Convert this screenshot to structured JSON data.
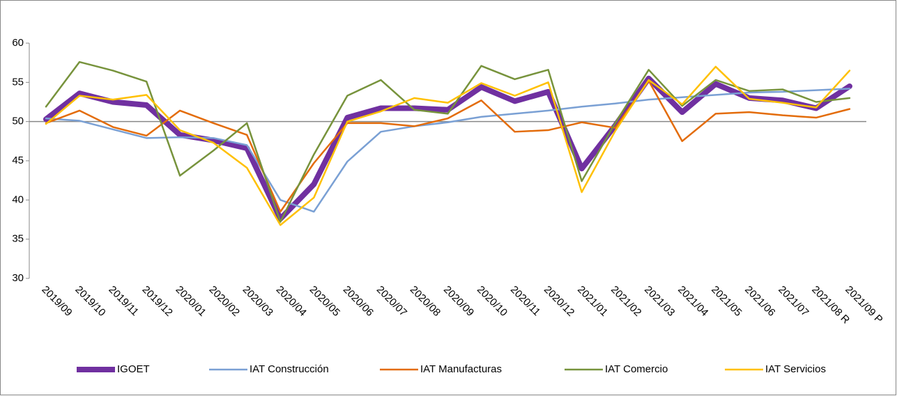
{
  "chart_data": {
    "type": "line",
    "categories": [
      "2019/09",
      "2019/10",
      "2019/11",
      "2019/12",
      "2020/01",
      "2020/02",
      "2020/03",
      "2020/04",
      "2020/05",
      "2020/06",
      "2020/07",
      "2020/08",
      "2020/09",
      "2020/10",
      "2020/11",
      "2020/12",
      "2021/01",
      "2021/02",
      "2021/03",
      "2021/04",
      "2021/05",
      "2021/06",
      "2021/07",
      "2021/08 R",
      "2021/09 P"
    ],
    "series": [
      {
        "name": "IGOET",
        "color": "#7030a0",
        "width": 8,
        "values": [
          50.3,
          53.6,
          52.5,
          52.1,
          48.3,
          47.6,
          46.6,
          37.6,
          42.0,
          50.5,
          51.7,
          51.7,
          51.5,
          54.4,
          52.6,
          53.8,
          44.0,
          49.5,
          55.5,
          51.2,
          54.8,
          53.0,
          52.7,
          51.7,
          54.5
        ]
      },
      {
        "name": "IAT Construcción",
        "color": "#7aa0d4",
        "width": 2.5,
        "values": [
          50.4,
          50.1,
          49.0,
          47.9,
          48.0,
          47.9,
          47.0,
          40.0,
          38.5,
          44.9,
          48.7,
          49.4,
          49.9,
          50.6,
          51.0,
          51.4,
          51.9,
          52.3,
          52.8,
          53.1,
          53.4,
          53.7,
          53.8,
          54.0,
          54.2
        ]
      },
      {
        "name": "IAT Manufacturas",
        "color": "#e36c0a",
        "width": 2.5,
        "values": [
          49.8,
          51.4,
          49.3,
          48.2,
          51.4,
          49.8,
          48.3,
          38.5,
          44.7,
          49.8,
          49.8,
          49.4,
          50.4,
          52.7,
          48.7,
          48.9,
          49.9,
          49.2,
          55.2,
          47.5,
          51.0,
          51.2,
          50.8,
          50.5,
          51.6
        ]
      },
      {
        "name": "IAT Comercio",
        "color": "#77933c",
        "width": 2.5,
        "values": [
          51.9,
          57.6,
          56.5,
          55.1,
          43.1,
          46.3,
          49.8,
          37.2,
          45.8,
          53.3,
          55.3,
          51.5,
          51.0,
          57.1,
          55.4,
          56.6,
          42.4,
          49.8,
          56.6,
          52.0,
          55.3,
          53.9,
          54.1,
          52.5,
          53.0
        ]
      },
      {
        "name": "IAT Servicios",
        "color": "#ffc000",
        "width": 2.5,
        "values": [
          49.7,
          53.3,
          52.8,
          53.4,
          48.9,
          47.3,
          44.1,
          36.8,
          40.3,
          50.0,
          51.3,
          53.0,
          52.4,
          54.9,
          53.3,
          55.0,
          41.0,
          48.8,
          55.3,
          52.2,
          57.0,
          52.9,
          52.4,
          51.8,
          56.5
        ]
      }
    ],
    "ylim": [
      30,
      60
    ],
    "yticks": [
      30,
      35,
      40,
      45,
      50,
      55,
      60
    ],
    "x_axis_crossing": 50,
    "legend": "bottom"
  }
}
